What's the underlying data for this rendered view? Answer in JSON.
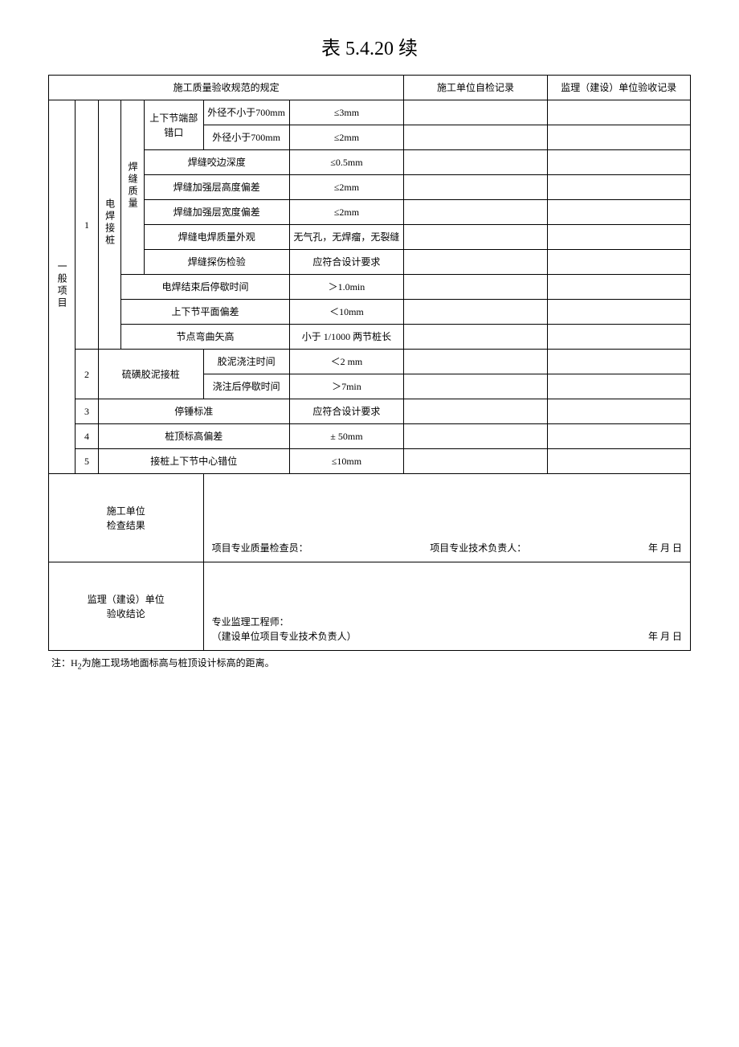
{
  "title": "表 5.4.20  续",
  "header": {
    "col_spec": "施工质量验收规范的规定",
    "col_self": "施工单位自检记录",
    "col_super": "监理（建设）单位验收记录"
  },
  "section_label": "一般项目",
  "group1": {
    "num": "1",
    "label": "电焊接桩",
    "weld_group": "焊缝质量",
    "offset_group": "上下节端部错口",
    "r1": {
      "label": "外径不小于700mm",
      "val": "≤3mm"
    },
    "r2": {
      "label": "外径小于700mm",
      "val": "≤2mm"
    },
    "r3": {
      "label": "焊缝咬边深度",
      "val": "≤0.5mm"
    },
    "r4": {
      "label": "焊缝加强层高度偏差",
      "val": "≤2mm"
    },
    "r5": {
      "label": "焊缝加强层宽度偏差",
      "val": "≤2mm"
    },
    "r6": {
      "label": "焊缝电焊质量外观",
      "val": "无气孔，无焊瘤，无裂缝"
    },
    "r7": {
      "label": "焊缝探伤检验",
      "val": "应符合设计要求"
    },
    "r8": {
      "label": "电焊结束后停歇时间",
      "val": "＞1.0min"
    },
    "r9": {
      "label": "上下节平面偏差",
      "val": "＜10mm"
    },
    "r10": {
      "label": "节点弯曲矢高",
      "val": "小于 1/1000 两节桩长"
    }
  },
  "group2": {
    "num": "2",
    "label": "硫磺胶泥接桩",
    "r1": {
      "label": "胶泥浇注时间",
      "val": "＜2 mm"
    },
    "r2": {
      "label": "浇注后停歇时间",
      "val": "＞7min"
    }
  },
  "group3": {
    "num": "3",
    "label": "停锤标准",
    "val": "应符合设计要求"
  },
  "group4": {
    "num": "4",
    "label": "桩顶标高偏差",
    "val": "± 50mm"
  },
  "group5": {
    "num": "5",
    "label": "接桩上下节中心错位",
    "val": "≤10mm"
  },
  "footer1": {
    "label": "施工单位\n检查结果",
    "sig1": "项目专业质量检查员：",
    "sig2": "项目专业技术负责人：",
    "date": "年    月    日"
  },
  "footer2": {
    "label": "监理（建设）单位\n验收结论",
    "sig1": "专业监理工程师：",
    "sig2": "（建设单位项目专业技术负责人）",
    "date": "年    月    日"
  },
  "note_prefix": "注：H",
  "note_sub": "2",
  "note_suffix": "为施工现场地面标高与桩顶设计标高的距离。"
}
